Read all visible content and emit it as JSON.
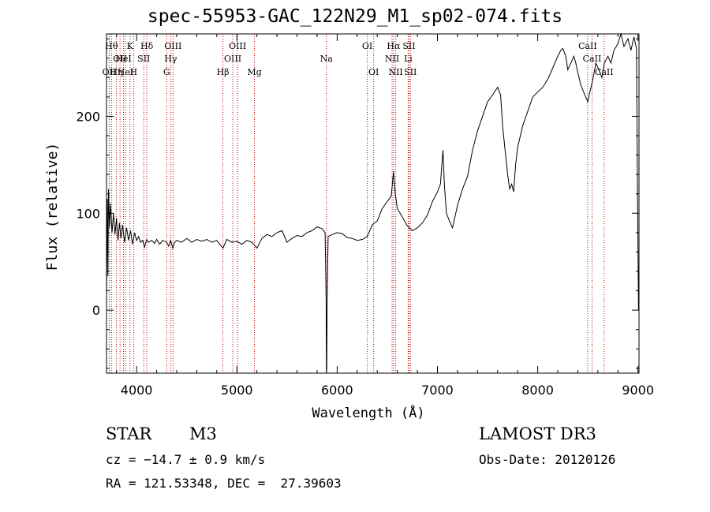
{
  "title": "spec-55953-GAC_122N29_M1_sp02-074.fits",
  "info": {
    "object_class": "STAR",
    "subclass": "M3",
    "redshift_line": "cz = −14.7 ± 0.9 km/s",
    "coords_line": "RA = 121.53348, DEC =  27.39603",
    "survey": "LAMOST DR3",
    "obs_date": "Obs-Date: 20120126"
  },
  "chart_data": {
    "type": "line",
    "title": "spec-55953-GAC_122N29_M1_sp02-074.fits",
    "xlabel": "Wavelength (Å)",
    "ylabel": "Flux (relative)",
    "xlim": [
      3700,
      9010
    ],
    "ylim": [
      -65,
      285
    ],
    "xticks": [
      4000,
      5000,
      6000,
      7000,
      8000,
      9000
    ],
    "yticks": [
      0,
      100,
      200
    ],
    "grid": false,
    "series": [
      {
        "points": [
          [
            3700,
            10
          ],
          [
            3708,
            115
          ],
          [
            3714,
            35
          ],
          [
            3720,
            125
          ],
          [
            3730,
            85
          ],
          [
            3740,
            110
          ],
          [
            3755,
            80
          ],
          [
            3770,
            100
          ],
          [
            3785,
            78
          ],
          [
            3800,
            95
          ],
          [
            3815,
            72
          ],
          [
            3830,
            90
          ],
          [
            3845,
            74
          ],
          [
            3860,
            88
          ],
          [
            3880,
            70
          ],
          [
            3900,
            85
          ],
          [
            3920,
            72
          ],
          [
            3940,
            82
          ],
          [
            3960,
            68
          ],
          [
            3980,
            80
          ],
          [
            4000,
            72
          ],
          [
            4020,
            76
          ],
          [
            4040,
            70
          ],
          [
            4060,
            72
          ],
          [
            4080,
            65
          ],
          [
            4100,
            73
          ],
          [
            4120,
            70
          ],
          [
            4150,
            72
          ],
          [
            4180,
            69
          ],
          [
            4200,
            73
          ],
          [
            4230,
            68
          ],
          [
            4260,
            72
          ],
          [
            4300,
            70
          ],
          [
            4320,
            66
          ],
          [
            4340,
            72
          ],
          [
            4360,
            64
          ],
          [
            4380,
            70
          ],
          [
            4400,
            72
          ],
          [
            4450,
            70
          ],
          [
            4500,
            74
          ],
          [
            4550,
            70
          ],
          [
            4600,
            73
          ],
          [
            4650,
            71
          ],
          [
            4700,
            73
          ],
          [
            4750,
            70
          ],
          [
            4800,
            72
          ],
          [
            4861,
            64
          ],
          [
            4900,
            73
          ],
          [
            4950,
            70
          ],
          [
            5000,
            71
          ],
          [
            5050,
            68
          ],
          [
            5100,
            72
          ],
          [
            5150,
            70
          ],
          [
            5200,
            64
          ],
          [
            5250,
            74
          ],
          [
            5300,
            78
          ],
          [
            5350,
            76
          ],
          [
            5400,
            80
          ],
          [
            5450,
            82
          ],
          [
            5500,
            70
          ],
          [
            5550,
            74
          ],
          [
            5600,
            77
          ],
          [
            5650,
            76
          ],
          [
            5700,
            80
          ],
          [
            5750,
            82
          ],
          [
            5800,
            86
          ],
          [
            5850,
            84
          ],
          [
            5880,
            80
          ],
          [
            5890,
            12
          ],
          [
            5893,
            -65
          ],
          [
            5896,
            -60
          ],
          [
            5900,
            10
          ],
          [
            5910,
            76
          ],
          [
            5950,
            78
          ],
          [
            6000,
            80
          ],
          [
            6050,
            79
          ],
          [
            6100,
            75
          ],
          [
            6150,
            74
          ],
          [
            6200,
            72
          ],
          [
            6250,
            73
          ],
          [
            6300,
            76
          ],
          [
            6350,
            88
          ],
          [
            6400,
            92
          ],
          [
            6450,
            105
          ],
          [
            6500,
            112
          ],
          [
            6540,
            118
          ],
          [
            6562,
            143
          ],
          [
            6580,
            120
          ],
          [
            6600,
            105
          ],
          [
            6650,
            96
          ],
          [
            6700,
            87
          ],
          [
            6750,
            82
          ],
          [
            6800,
            85
          ],
          [
            6850,
            90
          ],
          [
            6900,
            98
          ],
          [
            6950,
            112
          ],
          [
            7000,
            122
          ],
          [
            7030,
            130
          ],
          [
            7055,
            165
          ],
          [
            7070,
            128
          ],
          [
            7090,
            100
          ],
          [
            7120,
            92
          ],
          [
            7150,
            85
          ],
          [
            7200,
            108
          ],
          [
            7250,
            125
          ],
          [
            7300,
            138
          ],
          [
            7350,
            165
          ],
          [
            7400,
            185
          ],
          [
            7450,
            200
          ],
          [
            7500,
            215
          ],
          [
            7550,
            222
          ],
          [
            7600,
            230
          ],
          [
            7630,
            222
          ],
          [
            7650,
            190
          ],
          [
            7680,
            160
          ],
          [
            7700,
            140
          ],
          [
            7720,
            125
          ],
          [
            7740,
            130
          ],
          [
            7760,
            122
          ],
          [
            7780,
            150
          ],
          [
            7800,
            168
          ],
          [
            7850,
            190
          ],
          [
            7900,
            205
          ],
          [
            7950,
            220
          ],
          [
            8000,
            225
          ],
          [
            8050,
            230
          ],
          [
            8100,
            238
          ],
          [
            8150,
            250
          ],
          [
            8200,
            262
          ],
          [
            8230,
            268
          ],
          [
            8250,
            270
          ],
          [
            8280,
            262
          ],
          [
            8300,
            248
          ],
          [
            8330,
            255
          ],
          [
            8360,
            262
          ],
          [
            8380,
            255
          ],
          [
            8400,
            245
          ],
          [
            8430,
            232
          ],
          [
            8470,
            222
          ],
          [
            8500,
            215
          ],
          [
            8520,
            225
          ],
          [
            8550,
            238
          ],
          [
            8580,
            255
          ],
          [
            8610,
            248
          ],
          [
            8640,
            240
          ],
          [
            8665,
            255
          ],
          [
            8700,
            262
          ],
          [
            8730,
            255
          ],
          [
            8760,
            268
          ],
          [
            8800,
            275
          ],
          [
            8830,
            285
          ],
          [
            8860,
            272
          ],
          [
            8900,
            280
          ],
          [
            8930,
            268
          ],
          [
            8960,
            282
          ],
          [
            8985,
            270
          ],
          [
            8995,
            120
          ],
          [
            9005,
            0
          ]
        ]
      }
    ],
    "spectral_lines": [
      {
        "wavelength": 3727,
        "label": "OII",
        "row": 3
      },
      {
        "wavelength": 3750,
        "label": "Hθ",
        "row": 1
      },
      {
        "wavelength": 3798,
        "label": "Hη",
        "row": 3
      },
      {
        "wavelength": 3835,
        "label": "OII",
        "row": 2
      },
      {
        "wavelength": 3869,
        "label": "HeI",
        "row": 2
      },
      {
        "wavelength": 3889,
        "label": "HeI",
        "row": 3
      },
      {
        "wavelength": 3934,
        "label": "K",
        "row": 1
      },
      {
        "wavelength": 3970,
        "label": "H",
        "row": 3
      },
      {
        "wavelength": 4072,
        "label": "SII",
        "row": 2
      },
      {
        "wavelength": 4102,
        "label": "Hδ",
        "row": 1
      },
      {
        "wavelength": 4300,
        "label": "G",
        "row": 3
      },
      {
        "wavelength": 4340,
        "label": "Hγ",
        "row": 2
      },
      {
        "wavelength": 4363,
        "label": "OIII",
        "row": 1
      },
      {
        "wavelength": 4861,
        "label": "Hβ",
        "row": 3
      },
      {
        "wavelength": 4959,
        "label": "OIII",
        "row": 2
      },
      {
        "wavelength": 5007,
        "label": "OIII",
        "row": 1
      },
      {
        "wavelength": 5175,
        "label": "Mg",
        "row": 3
      },
      {
        "wavelength": 5893,
        "label": "Na",
        "row": 2
      },
      {
        "wavelength": 6300,
        "label": "OI",
        "row": 1
      },
      {
        "wavelength": 6364,
        "label": "OI",
        "row": 3
      },
      {
        "wavelength": 6548,
        "label": "NII",
        "row": 2
      },
      {
        "wavelength": 6563,
        "label": "Hα",
        "row": 1
      },
      {
        "wavelength": 6584,
        "label": "NII",
        "row": 3
      },
      {
        "wavelength": 6708,
        "label": "Li",
        "row": 2
      },
      {
        "wavelength": 6717,
        "label": "SII",
        "row": 1
      },
      {
        "wavelength": 6731,
        "label": "SII",
        "row": 3
      },
      {
        "wavelength": 8498,
        "label": "CaII",
        "row": 1
      },
      {
        "wavelength": 8542,
        "label": "CaII",
        "row": 2
      },
      {
        "wavelength": 8662,
        "label": "CaII",
        "row": 3
      }
    ],
    "colors": {
      "spectrum": "#000000",
      "line_markers": "#c00000",
      "axes": "#000000"
    }
  }
}
